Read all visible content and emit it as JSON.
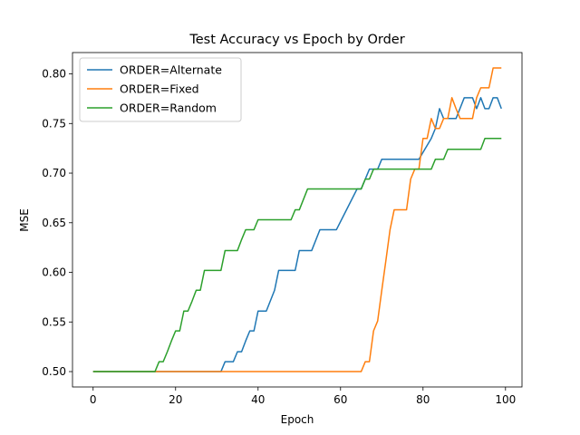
{
  "chart_data": {
    "type": "line",
    "title": "Test Accuracy vs Epoch by Order",
    "xlabel": "Epoch",
    "ylabel": "MSE",
    "xlim": [
      -5,
      104
    ],
    "ylim": [
      0.4845,
      0.8215
    ],
    "xticks": [
      0,
      20,
      40,
      60,
      80,
      100
    ],
    "yticks": [
      0.5,
      0.55,
      0.6,
      0.65,
      0.7,
      0.75,
      0.8
    ],
    "ytick_labels": [
      "0.50",
      "0.55",
      "0.60",
      "0.65",
      "0.70",
      "0.75",
      "0.80"
    ],
    "grid": false,
    "legend_position": "upper-left",
    "series": [
      {
        "name": "ORDER=Alternate",
        "color": "#1f77b4",
        "points": [
          [
            0,
            0.5
          ],
          [
            31,
            0.5
          ],
          [
            32,
            0.51
          ],
          [
            34,
            0.51
          ],
          [
            35,
            0.52
          ],
          [
            36,
            0.52
          ],
          [
            37,
            0.531
          ],
          [
            38,
            0.541
          ],
          [
            39,
            0.541
          ],
          [
            40,
            0.561
          ],
          [
            42,
            0.561
          ],
          [
            44,
            0.582
          ],
          [
            45,
            0.602
          ],
          [
            49,
            0.602
          ],
          [
            50,
            0.622
          ],
          [
            53,
            0.622
          ],
          [
            55,
            0.643
          ],
          [
            59,
            0.643
          ],
          [
            64,
            0.684
          ],
          [
            65,
            0.684
          ],
          [
            67,
            0.704
          ],
          [
            69,
            0.704
          ],
          [
            70,
            0.714
          ],
          [
            79,
            0.714
          ],
          [
            82,
            0.735
          ],
          [
            83,
            0.745
          ],
          [
            84,
            0.765
          ],
          [
            85,
            0.755
          ],
          [
            88,
            0.755
          ],
          [
            90,
            0.776
          ],
          [
            92,
            0.776
          ],
          [
            93,
            0.765
          ],
          [
            94,
            0.776
          ],
          [
            95,
            0.765
          ],
          [
            96,
            0.765
          ],
          [
            97,
            0.776
          ],
          [
            98,
            0.776
          ],
          [
            99,
            0.765
          ]
        ]
      },
      {
        "name": "ORDER=Fixed",
        "color": "#ff7f0e",
        "points": [
          [
            0,
            0.5
          ],
          [
            65,
            0.5
          ],
          [
            66,
            0.51
          ],
          [
            67,
            0.51
          ],
          [
            68,
            0.541
          ],
          [
            69,
            0.551
          ],
          [
            70,
            0.582
          ],
          [
            71,
            0.612
          ],
          [
            72,
            0.643
          ],
          [
            73,
            0.663
          ],
          [
            76,
            0.663
          ],
          [
            77,
            0.694
          ],
          [
            78,
            0.704
          ],
          [
            79,
            0.704
          ],
          [
            80,
            0.735
          ],
          [
            81,
            0.735
          ],
          [
            82,
            0.755
          ],
          [
            83,
            0.745
          ],
          [
            84,
            0.745
          ],
          [
            85,
            0.755
          ],
          [
            86,
            0.755
          ],
          [
            87,
            0.776
          ],
          [
            88,
            0.765
          ],
          [
            89,
            0.755
          ],
          [
            92,
            0.755
          ],
          [
            93,
            0.776
          ],
          [
            94,
            0.786
          ],
          [
            96,
            0.786
          ],
          [
            97,
            0.806
          ],
          [
            99,
            0.806
          ]
        ]
      },
      {
        "name": "ORDER=Random",
        "color": "#2ca02c",
        "points": [
          [
            0,
            0.5
          ],
          [
            15,
            0.5
          ],
          [
            16,
            0.51
          ],
          [
            17,
            0.51
          ],
          [
            18,
            0.52
          ],
          [
            19,
            0.531
          ],
          [
            20,
            0.541
          ],
          [
            21,
            0.541
          ],
          [
            22,
            0.561
          ],
          [
            23,
            0.561
          ],
          [
            24,
            0.571
          ],
          [
            25,
            0.582
          ],
          [
            26,
            0.582
          ],
          [
            27,
            0.602
          ],
          [
            31,
            0.602
          ],
          [
            32,
            0.622
          ],
          [
            35,
            0.622
          ],
          [
            36,
            0.633
          ],
          [
            37,
            0.643
          ],
          [
            39,
            0.643
          ],
          [
            40,
            0.653
          ],
          [
            48,
            0.653
          ],
          [
            49,
            0.663
          ],
          [
            50,
            0.663
          ],
          [
            52,
            0.684
          ],
          [
            65,
            0.684
          ],
          [
            66,
            0.694
          ],
          [
            67,
            0.694
          ],
          [
            68,
            0.704
          ],
          [
            82,
            0.704
          ],
          [
            83,
            0.714
          ],
          [
            85,
            0.714
          ],
          [
            86,
            0.724
          ],
          [
            94,
            0.724
          ],
          [
            95,
            0.735
          ],
          [
            99,
            0.735
          ]
        ]
      }
    ]
  }
}
